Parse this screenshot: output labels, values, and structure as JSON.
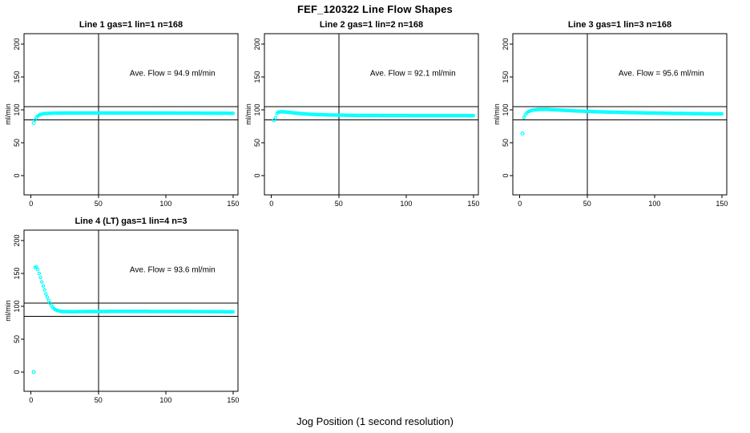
{
  "figure": {
    "title": "FEF_120322  Line Flow Shapes",
    "x_axis_label": "Jog Position (1 second resolution)",
    "background_color": "#ffffff",
    "point_color": "#00ffff",
    "line_color": "#000000"
  },
  "chart_data": [
    {
      "type": "scatter",
      "title": "Line 1 gas=1 lin=1 n=168",
      "annotation": "Ave. Flow =  94.9  ml/min",
      "ave_flow_ml_min": 94.9,
      "ylabel": "ml/min",
      "x_ticks": [
        0,
        50,
        100,
        150
      ],
      "y_ticks": [
        0,
        50,
        100,
        150,
        200
      ],
      "xlim": [
        0,
        150
      ],
      "ylim": [
        0,
        200
      ],
      "grid": false,
      "legend": false,
      "ref_hlines": [
        105,
        85
      ],
      "ref_vline": 50,
      "outliers": [
        [
          2,
          80
        ]
      ],
      "points": [
        [
          3,
          85
        ],
        [
          4,
          88.5
        ],
        [
          5,
          90.5
        ],
        [
          6,
          92
        ],
        [
          7,
          93
        ],
        [
          8,
          93.6
        ],
        [
          10,
          94.3
        ],
        [
          13,
          94.7
        ],
        [
          17,
          95
        ],
        [
          25,
          95.1
        ],
        [
          40,
          95.2
        ],
        [
          60,
          95.2
        ],
        [
          80,
          95.2
        ],
        [
          100,
          95.1
        ],
        [
          120,
          95
        ],
        [
          150,
          94.8
        ]
      ]
    },
    {
      "type": "scatter",
      "title": "Line 2 gas=1 lin=2 n=168",
      "annotation": "Ave. Flow =  92.1  ml/min",
      "ave_flow_ml_min": 92.1,
      "ylabel": "ml/min",
      "x_ticks": [
        0,
        50,
        100,
        150
      ],
      "y_ticks": [
        0,
        50,
        100,
        150,
        200
      ],
      "xlim": [
        0,
        150
      ],
      "ylim": [
        0,
        200
      ],
      "grid": false,
      "legend": false,
      "ref_hlines": [
        105,
        85
      ],
      "ref_vline": 50,
      "outliers": [
        [
          2,
          84
        ]
      ],
      "points": [
        [
          3,
          88
        ],
        [
          4,
          94.5
        ],
        [
          5,
          96.3
        ],
        [
          6,
          96.8
        ],
        [
          8,
          97
        ],
        [
          10,
          96.8
        ],
        [
          13,
          96.2
        ],
        [
          16,
          95.5
        ],
        [
          20,
          94.7
        ],
        [
          25,
          93.8
        ],
        [
          30,
          93.2
        ],
        [
          40,
          92.4
        ],
        [
          50,
          92
        ],
        [
          60,
          91.7
        ],
        [
          80,
          91.4
        ],
        [
          100,
          91.3
        ],
        [
          120,
          91.2
        ],
        [
          150,
          91.2
        ]
      ]
    },
    {
      "type": "scatter",
      "title": "Line 3 gas=1 lin=3 n=168",
      "annotation": "Ave. Flow =  95.6  ml/min",
      "ave_flow_ml_min": 95.6,
      "ylabel": "ml/min",
      "x_ticks": [
        0,
        50,
        100,
        150
      ],
      "y_ticks": [
        0,
        50,
        100,
        150,
        200
      ],
      "xlim": [
        0,
        150
      ],
      "ylim": [
        0,
        200
      ],
      "grid": false,
      "legend": false,
      "ref_hlines": [
        105,
        85
      ],
      "ref_vline": 50,
      "outliers": [
        [
          2,
          64
        ]
      ],
      "points": [
        [
          3,
          88
        ],
        [
          4,
          92.5
        ],
        [
          5,
          95
        ],
        [
          6,
          96.8
        ],
        [
          8,
          98.8
        ],
        [
          10,
          99.8
        ],
        [
          13,
          100.5
        ],
        [
          16,
          100.8
        ],
        [
          20,
          100.7
        ],
        [
          25,
          100.2
        ],
        [
          30,
          99.6
        ],
        [
          40,
          98.5
        ],
        [
          50,
          97.7
        ],
        [
          60,
          96.9
        ],
        [
          80,
          95.9
        ],
        [
          100,
          95.1
        ],
        [
          120,
          94.5
        ],
        [
          150,
          93.8
        ]
      ]
    },
    {
      "type": "scatter",
      "title": "Line 4 (LT) gas=1 lin=4 n=3",
      "annotation": "Ave. Flow =  93.6  ml/min",
      "ave_flow_ml_min": 93.6,
      "ylabel": "ml/min",
      "x_ticks": [
        0,
        50,
        100,
        150
      ],
      "y_ticks": [
        0,
        50,
        100,
        150,
        200
      ],
      "xlim": [
        0,
        150
      ],
      "ylim": [
        0,
        200
      ],
      "grid": false,
      "legend": false,
      "ref_hlines": [
        105,
        85
      ],
      "ref_vline": 50,
      "outliers": [
        [
          2,
          0
        ]
      ],
      "points": [
        [
          3,
          159
        ],
        [
          4,
          160
        ],
        [
          5,
          156
        ],
        [
          6,
          150
        ],
        [
          7,
          144
        ],
        [
          8,
          137
        ],
        [
          9,
          131
        ],
        [
          10,
          125
        ],
        [
          11,
          119
        ],
        [
          12,
          114
        ],
        [
          13,
          109
        ],
        [
          14,
          105
        ],
        [
          15,
          101.5
        ],
        [
          16,
          98.5
        ],
        [
          17,
          96.5
        ],
        [
          18,
          95
        ],
        [
          19,
          94
        ],
        [
          20,
          93.3
        ],
        [
          22,
          92.5
        ],
        [
          25,
          92
        ],
        [
          30,
          91.8
        ],
        [
          40,
          92
        ],
        [
          50,
          92.2
        ],
        [
          60,
          92.3
        ],
        [
          80,
          92.3
        ],
        [
          100,
          92.2
        ],
        [
          120,
          92
        ],
        [
          150,
          91.7
        ]
      ]
    }
  ]
}
